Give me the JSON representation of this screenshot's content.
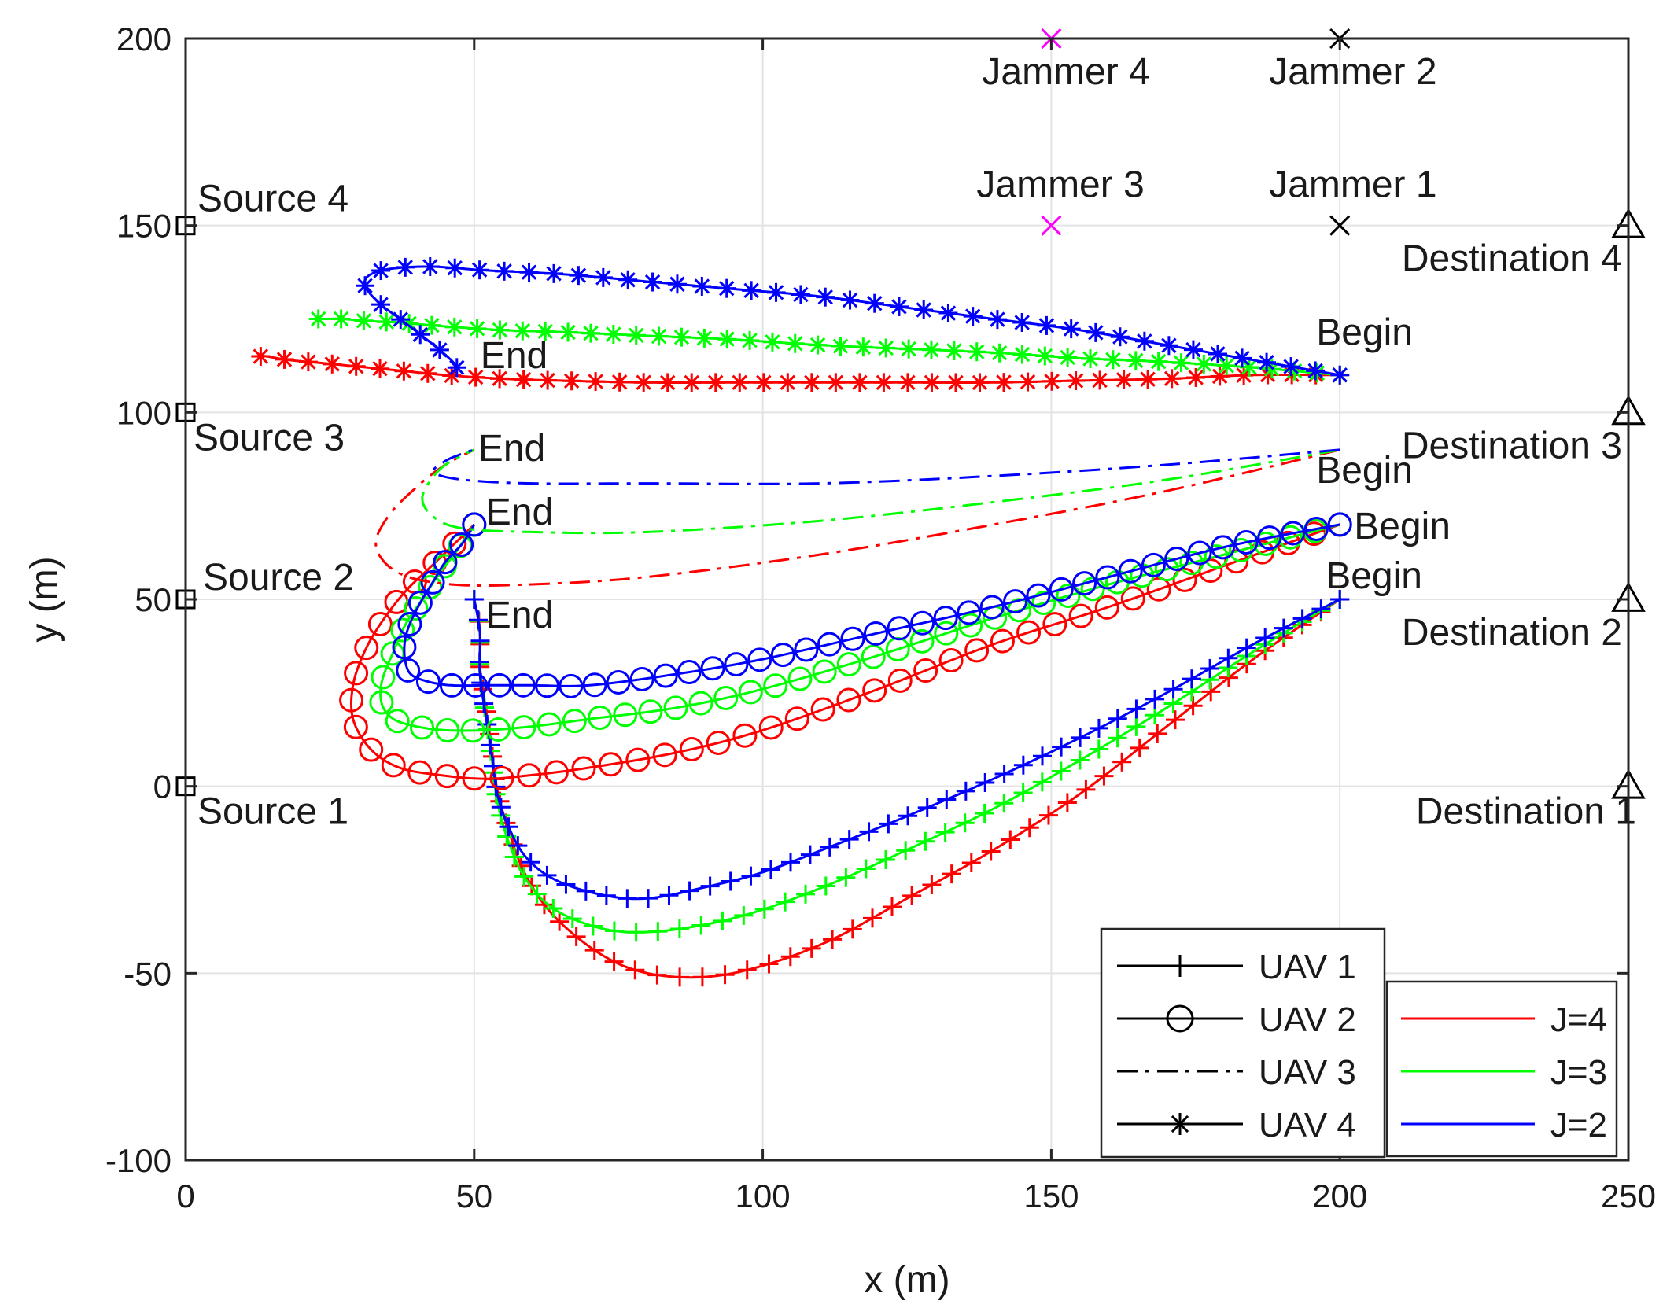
{
  "chart_data": {
    "type": "line",
    "title": "",
    "xlabel": "x (m)",
    "ylabel": "y (m)",
    "xlim": [
      0,
      250
    ],
    "ylim": [
      -100,
      200
    ],
    "xticks": [
      "0",
      "50",
      "100",
      "150",
      "200",
      "250"
    ],
    "yticks": [
      "-100",
      "-50",
      "0",
      "50",
      "100",
      "150",
      "200"
    ],
    "grid": true,
    "colors": {
      "J=4": "#ff0000",
      "J=3": "#00ff00",
      "J=2": "#0000ff",
      "reference": "#000000",
      "jammer_34": "#ff00ff"
    },
    "markers": {
      "UAV 1": "plus",
      "UAV 2": "circle",
      "UAV 3": "none",
      "UAV 4": "asterisk"
    },
    "dashes": {
      "UAV 1": "solid",
      "UAV 2": "solid",
      "UAV 3": "dash-dot",
      "UAV 4": "solid"
    },
    "sources": [
      {
        "label": "Source 1",
        "x": 0,
        "y": 0
      },
      {
        "label": "Source 2",
        "x": 0,
        "y": 50
      },
      {
        "label": "Source 3",
        "x": 0,
        "y": 100
      },
      {
        "label": "Source 4",
        "x": 0,
        "y": 150
      }
    ],
    "destinations": [
      {
        "label": "Destination 1",
        "x": 250,
        "y": 0
      },
      {
        "label": "Destination 2",
        "x": 250,
        "y": 50
      },
      {
        "label": "Destination 3",
        "x": 250,
        "y": 100
      },
      {
        "label": "Destination 4",
        "x": 250,
        "y": 150
      }
    ],
    "jammers": [
      {
        "label": "Jammer 1",
        "x": 200,
        "y": 150,
        "color": "#000000"
      },
      {
        "label": "Jammer 2",
        "x": 200,
        "y": 200,
        "color": "#000000"
      },
      {
        "label": "Jammer 3",
        "x": 150,
        "y": 150,
        "color": "#ff00ff"
      },
      {
        "label": "Jammer 4",
        "x": 150,
        "y": 200,
        "color": "#ff00ff"
      }
    ],
    "annotations": [
      {
        "text": "Begin",
        "x": 200,
        "y": 113
      },
      {
        "text": "Begin",
        "x": 200,
        "y": 90
      },
      {
        "text": "Begin",
        "x": 200,
        "y": 70
      },
      {
        "text": "Begin",
        "x": 200,
        "y": 50
      },
      {
        "text": "End",
        "x": 50,
        "y": 114
      },
      {
        "text": "End",
        "x": 50,
        "y": 90
      },
      {
        "text": "End",
        "x": 50,
        "y": 70
      },
      {
        "text": "End",
        "x": 50,
        "y": 45
      }
    ],
    "legend": {
      "uav": [
        "UAV 1",
        "UAV 2",
        "UAV 3",
        "UAV 4"
      ],
      "jammers": [
        "J=4",
        "J=3",
        "J=2"
      ]
    },
    "series": [
      {
        "name": "UAV 1, J=4",
        "uav": "UAV 1",
        "group": "J=4",
        "x": [
          200,
          185,
          170,
          155,
          140,
          125,
          112,
          100,
          90,
          80,
          72,
          64,
          59,
          56,
          54,
          53,
          52,
          51,
          51,
          50
        ],
        "y": [
          50,
          34,
          16,
          -2,
          -17,
          -30,
          -41,
          -48,
          -51,
          -50,
          -45,
          -35,
          -24,
          -12,
          -1,
          10,
          21,
          32,
          42,
          50
        ]
      },
      {
        "name": "UAV 1, J=3",
        "uav": "UAV 1",
        "group": "J=3",
        "x": [
          200,
          185,
          170,
          155,
          140,
          125,
          112,
          100,
          90,
          80,
          72,
          64,
          59,
          56,
          54,
          53,
          52,
          51,
          51,
          50
        ],
        "y": [
          50,
          36,
          21,
          7,
          -6,
          -17,
          -26,
          -33,
          -37,
          -39,
          -38,
          -33,
          -25,
          -15,
          -4,
          8,
          19,
          30,
          41,
          50
        ]
      },
      {
        "name": "UAV 1, J=2",
        "uav": "UAV 1",
        "group": "J=2",
        "x": [
          200,
          185,
          170,
          155,
          140,
          125,
          112,
          100,
          90,
          80,
          72,
          64,
          59,
          56,
          54,
          53,
          52,
          51,
          51,
          50
        ],
        "y": [
          50,
          38,
          25,
          13,
          2,
          -8,
          -16,
          -23,
          -27,
          -30,
          -29,
          -25,
          -19,
          -11,
          -2,
          9,
          19,
          30,
          41,
          50
        ]
      },
      {
        "name": "UAV 2, J=4",
        "uav": "UAV 2",
        "group": "J=4",
        "x": [
          200,
          180,
          160,
          140,
          120,
          100,
          85,
          70,
          60,
          52,
          44,
          37,
          32,
          29,
          29,
          31,
          34,
          38,
          42,
          46,
          50
        ],
        "y": [
          70,
          59,
          48,
          38,
          26,
          15,
          9,
          5,
          3,
          2,
          3,
          5,
          10,
          18,
          27,
          36,
          44,
          52,
          58,
          64,
          70
        ]
      },
      {
        "name": "UAV 2, J=3",
        "uav": "UAV 2",
        "group": "J=3",
        "x": [
          200,
          180,
          160,
          140,
          120,
          100,
          85,
          70,
          60,
          52,
          45,
          40,
          36,
          34,
          34,
          36,
          38,
          41,
          44,
          47,
          50
        ],
        "y": [
          70,
          62,
          54,
          45,
          35,
          26,
          21,
          18,
          16,
          15,
          15,
          16,
          18,
          22,
          28,
          36,
          43,
          50,
          57,
          63,
          70
        ]
      },
      {
        "name": "UAV 2, J=2",
        "uav": "UAV 2",
        "group": "J=2",
        "x": [
          200,
          180,
          160,
          140,
          120,
          100,
          85,
          70,
          60,
          52,
          46,
          42,
          39,
          38,
          38,
          39,
          41,
          43,
          45,
          48,
          50
        ],
        "y": [
          70,
          64,
          56,
          48,
          41,
          34,
          30,
          27,
          27,
          27,
          27,
          28,
          30,
          34,
          39,
          44,
          50,
          55,
          60,
          65,
          70
        ]
      },
      {
        "name": "UAV 3, J=4",
        "uav": "UAV 3",
        "group": "J=4",
        "x": [
          200,
          170,
          140,
          110,
          80,
          60,
          46,
          37,
          33,
          35,
          40,
          45,
          50
        ],
        "y": [
          90,
          79,
          70,
          62,
          56,
          54,
          54,
          57,
          64,
          72,
          80,
          86,
          90
        ]
      },
      {
        "name": "UAV 3, J=3",
        "uav": "UAV 3",
        "group": "J=3",
        "x": [
          200,
          170,
          140,
          110,
          80,
          60,
          48,
          43,
          41,
          43,
          46,
          50
        ],
        "y": [
          90,
          82,
          76,
          71,
          68,
          68,
          69,
          72,
          77,
          83,
          87,
          90
        ]
      },
      {
        "name": "UAV 3, J=2",
        "uav": "UAV 3",
        "group": "J=2",
        "x": [
          200,
          170,
          140,
          110,
          80,
          60,
          48,
          43,
          45,
          48,
          50
        ],
        "y": [
          90,
          86,
          83,
          81,
          81,
          81,
          82,
          84,
          87,
          89,
          90
        ]
      },
      {
        "name": "UAV 4, J=4",
        "uav": "UAV 4",
        "group": "J=4",
        "x": [
          200,
          185,
          170,
          155,
          140,
          125,
          110,
          95,
          80,
          65,
          55,
          45,
          35,
          25,
          18,
          14,
          13
        ],
        "y": [
          110,
          110,
          109,
          108.5,
          108,
          108,
          108,
          108,
          108,
          108.5,
          109,
          110,
          111.5,
          113,
          114,
          115,
          115
        ]
      },
      {
        "name": "UAV 4, J=3",
        "uav": "UAV 4",
        "group": "J=3",
        "x": [
          200,
          185,
          170,
          155,
          140,
          125,
          110,
          95,
          80,
          65,
          55,
          45,
          37,
          31,
          27,
          24,
          23
        ],
        "y": [
          110,
          112,
          113.5,
          114.5,
          116,
          117,
          118,
          119.5,
          120.5,
          121.5,
          122,
          123,
          124,
          124.5,
          125,
          125,
          125
        ]
      },
      {
        "name": "UAV 4, J=2",
        "uav": "UAV 4",
        "group": "J=2",
        "x": [
          200,
          185,
          170,
          155,
          140,
          125,
          110,
          95,
          80,
          65,
          52,
          42,
          34,
          31,
          33,
          38,
          43,
          46,
          47
        ],
        "y": [
          110,
          114,
          118,
          122,
          125,
          128,
          131,
          133,
          135,
          137,
          138,
          139,
          138,
          135,
          130,
          124,
          118,
          114,
          112
        ]
      }
    ]
  }
}
